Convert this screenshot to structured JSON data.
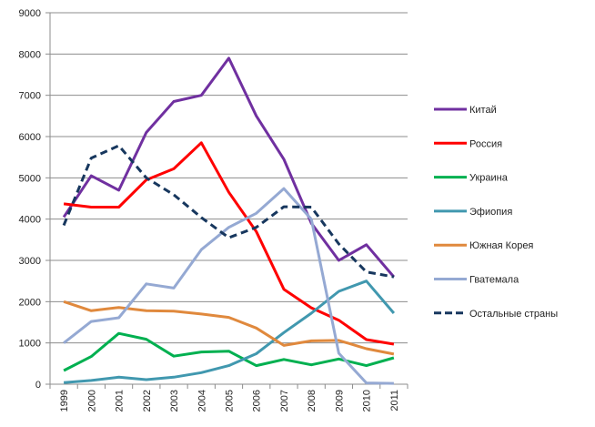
{
  "chart_data": {
    "type": "line",
    "title": "",
    "xlabel": "",
    "ylabel": "",
    "ylim": [
      0,
      9000
    ],
    "yticks": [
      0,
      1000,
      2000,
      3000,
      4000,
      5000,
      6000,
      7000,
      8000,
      9000
    ],
    "grid": true,
    "legend_position": "right",
    "categories": [
      "1999",
      "2000",
      "2001",
      "2002",
      "2003",
      "2004",
      "2005",
      "2006",
      "2007",
      "2008",
      "2009",
      "2010",
      "2011"
    ],
    "series": [
      {
        "name": "Китай",
        "color": "#7030A0",
        "dashed": false,
        "values": [
          4050,
          5050,
          4700,
          6100,
          6850,
          7000,
          7900,
          6500,
          5450,
          3900,
          3000,
          3380,
          2600
        ]
      },
      {
        "name": "Россия",
        "color": "#FF0000",
        "dashed": false,
        "values": [
          4370,
          4290,
          4290,
          4950,
          5220,
          5850,
          4650,
          3700,
          2300,
          1850,
          1550,
          1080,
          970
        ]
      },
      {
        "name": "Украина",
        "color": "#00B050",
        "dashed": false,
        "values": [
          330,
          670,
          1230,
          1090,
          680,
          780,
          800,
          450,
          600,
          470,
          610,
          450,
          640
        ]
      },
      {
        "name": "Эфиопия",
        "color": "#4198AF",
        "dashed": false,
        "values": [
          40,
          90,
          170,
          110,
          170,
          280,
          450,
          740,
          1250,
          1720,
          2250,
          2500,
          1720
        ]
      },
      {
        "name": "Южная Корея",
        "color": "#E0893D",
        "dashed": false,
        "values": [
          2000,
          1780,
          1860,
          1780,
          1770,
          1700,
          1620,
          1360,
          940,
          1050,
          1060,
          860,
          730
        ]
      },
      {
        "name": "Гватемала",
        "color": "#95A9D3",
        "dashed": false,
        "values": [
          1000,
          1520,
          1610,
          2430,
          2330,
          3260,
          3800,
          4140,
          4740,
          4000,
          750,
          30,
          20
        ]
      },
      {
        "name": "Остальные страны",
        "color": "#17375E",
        "dashed": true,
        "values": [
          3850,
          5480,
          5780,
          5000,
          4590,
          4040,
          3550,
          3800,
          4300,
          4290,
          3400,
          2720,
          2600
        ]
      }
    ]
  }
}
